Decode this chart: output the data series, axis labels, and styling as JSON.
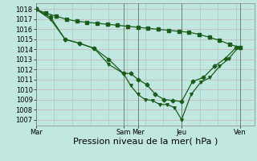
{
  "bg_color": "#c0e8e0",
  "grid_color_h": "#c8b0b0",
  "grid_color_v": "#b0c8c0",
  "line_color": "#1a5c1a",
  "marker_color": "#1a5c1a",
  "xlabel": "Pression niveau de la mer( hPa )",
  "xlabel_fontsize": 8,
  "ytick_fontsize": 6,
  "xtick_fontsize": 6,
  "yticks": [
    1007,
    1008,
    1009,
    1010,
    1011,
    1012,
    1013,
    1014,
    1015,
    1016,
    1017,
    1018
  ],
  "ylim": [
    1006.4,
    1018.6
  ],
  "xtick_labels": [
    "Mar",
    "Sam",
    "Mer",
    "Jeu",
    "Ven"
  ],
  "xtick_positions": [
    0,
    120,
    140,
    200,
    280
  ],
  "xlim": [
    0,
    300
  ],
  "vline_positions": [
    0,
    120,
    140,
    200,
    280
  ],
  "series1_x": [
    0,
    14,
    28,
    42,
    56,
    70,
    84,
    98,
    112,
    126,
    140,
    154,
    168,
    182,
    196,
    210,
    224,
    238,
    252,
    266,
    280
  ],
  "series1_y": [
    1018.0,
    1017.6,
    1017.3,
    1017.0,
    1016.8,
    1016.7,
    1016.6,
    1016.5,
    1016.4,
    1016.3,
    1016.2,
    1016.1,
    1016.0,
    1015.9,
    1015.8,
    1015.7,
    1015.5,
    1015.2,
    1014.9,
    1014.5,
    1014.2
  ],
  "series2_x": [
    0,
    20,
    40,
    60,
    80,
    100,
    120,
    130,
    140,
    152,
    164,
    176,
    188,
    200,
    215,
    230,
    245,
    260,
    275
  ],
  "series2_y": [
    1018.0,
    1017.2,
    1015.0,
    1014.6,
    1014.1,
    1013.0,
    1011.6,
    1011.6,
    1011.0,
    1010.5,
    1009.5,
    1009.0,
    1008.9,
    1008.8,
    1010.8,
    1011.2,
    1012.3,
    1013.1,
    1014.2
  ],
  "series3_x": [
    0,
    20,
    40,
    60,
    80,
    100,
    120,
    130,
    140,
    150,
    160,
    170,
    180,
    190,
    200,
    213,
    226,
    239,
    252,
    265,
    278
  ],
  "series3_y": [
    1018.0,
    1017.0,
    1015.0,
    1014.6,
    1014.1,
    1012.5,
    1011.6,
    1010.4,
    1009.5,
    1009.0,
    1008.9,
    1008.5,
    1008.5,
    1008.2,
    1007.0,
    1009.5,
    1010.7,
    1011.2,
    1012.3,
    1013.1,
    1014.2
  ]
}
